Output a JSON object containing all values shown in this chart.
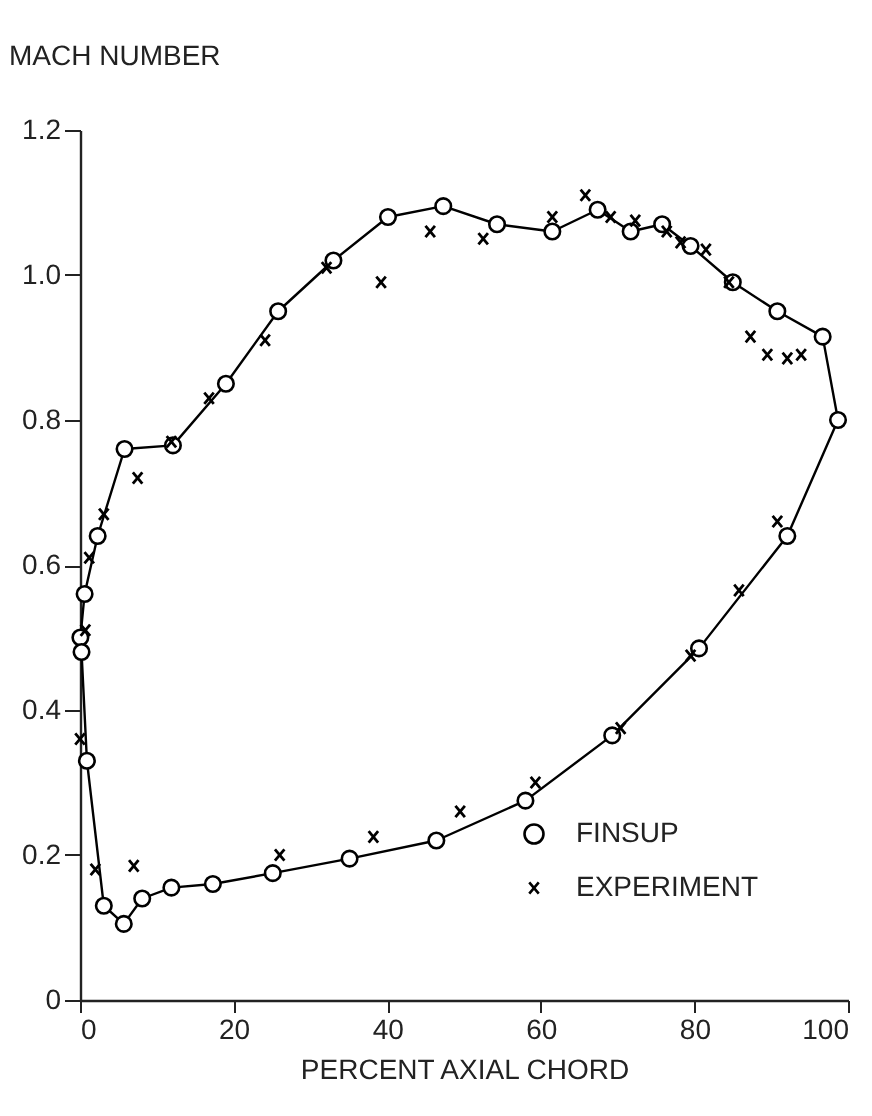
{
  "chart_data": {
    "type": "line",
    "xlabel": "PERCENT AXIAL CHORD",
    "ylabel": "MACH NUMBER",
    "xlim": [
      0,
      100
    ],
    "ylim": [
      0,
      1.2
    ],
    "xticks": [
      0,
      20,
      40,
      60,
      80,
      100
    ],
    "yticks": [
      0,
      {
        "value": 0.2,
        "label": "0.2"
      },
      {
        "value": 0.4,
        "label": "0.4"
      },
      {
        "value": 0.6,
        "label": "0.6"
      },
      {
        "value": 0.8,
        "label": "0.8"
      },
      {
        "value": 1,
        "label": "1.0"
      },
      {
        "value": 1.2,
        "label": "1.2"
      }
    ],
    "grid": false,
    "legend": "bottom right",
    "line_style": "solid",
    "series": [
      {
        "name": "FINSUP",
        "type": "line",
        "marker": "circle",
        "color": "#000000",
        "x": [
          0.05,
          0.6,
          2.3,
          5.8,
          12.1,
          19.0,
          25.8,
          33.0,
          40.1,
          47.3,
          54.3,
          61.5,
          67.4,
          71.7,
          75.8,
          79.5,
          85.0,
          90.8,
          96.7,
          98.7,
          92.1,
          80.6,
          69.3,
          58.0,
          46.4,
          35.1,
          25.1,
          17.3,
          11.9,
          8.1,
          5.7,
          3.1,
          0.9,
          0.2
        ],
        "values": [
          0.5,
          0.56,
          0.64,
          0.76,
          0.765,
          0.85,
          0.95,
          1.02,
          1.08,
          1.095,
          1.07,
          1.06,
          1.09,
          1.06,
          1.07,
          1.04,
          0.99,
          0.95,
          0.915,
          0.8,
          0.64,
          0.485,
          0.365,
          0.275,
          0.22,
          0.195,
          0.175,
          0.16,
          0.155,
          0.14,
          0.105,
          0.13,
          0.33,
          0.48
        ]
      },
      {
        "name": "EXPERIMENT",
        "type": "scatter",
        "marker": "cross",
        "color": "#000000",
        "x": [
          0.7,
          1.2,
          3.1,
          7.5,
          11.9,
          16.8,
          24.1,
          32.1,
          39.2,
          45.6,
          52.5,
          61.5,
          65.8,
          69.1,
          72.3,
          76.4,
          78.2,
          81.5,
          84.5,
          87.3,
          89.5,
          92.1,
          93.9,
          90.8,
          85.8,
          79.5,
          70.4,
          59.3,
          49.5,
          38.2,
          26.0,
          7.0,
          2.0,
          0.0
        ],
        "values": [
          0.51,
          0.61,
          0.67,
          0.72,
          0.77,
          0.83,
          0.91,
          1.01,
          0.99,
          1.06,
          1.05,
          1.08,
          1.11,
          1.08,
          1.075,
          1.06,
          1.045,
          1.035,
          0.99,
          0.915,
          0.89,
          0.885,
          0.89,
          0.66,
          0.565,
          0.475,
          0.375,
          0.3,
          0.26,
          0.225,
          0.2,
          0.185,
          0.18,
          0.36
        ]
      }
    ]
  }
}
